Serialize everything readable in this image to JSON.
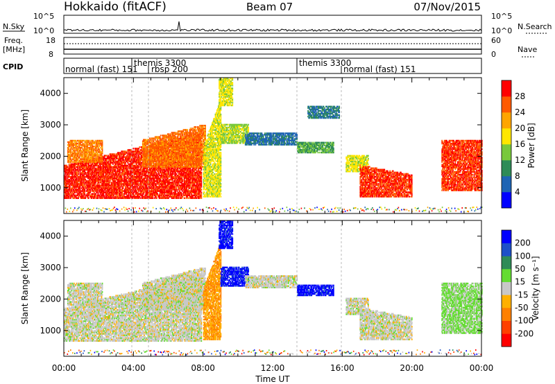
{
  "header": {
    "title": "Hokkaido (fitACF)",
    "beam": "Beam 07",
    "date": "07/Nov/2015"
  },
  "nsky_panel": {
    "label": "N.Sky",
    "left_ticks": [
      "10^5",
      "10^0"
    ],
    "right_ticks": [
      "10^5",
      "10^0"
    ],
    "right_label": "N.Search"
  },
  "freq_panel": {
    "label_line1": "Freq.",
    "label_line2": "[MHz]",
    "left_ticks": [
      "18",
      "8"
    ],
    "right_ticks": [
      "60",
      "0"
    ],
    "right_label": "Nave"
  },
  "cpid_panel": {
    "label": "CPID",
    "segments": [
      "normal (fast) 151",
      "themis 3300",
      "rbsp 200",
      "themis 3300",
      "normal (fast) 151"
    ]
  },
  "power_panel": {
    "ylabel": "Slant Range [km]",
    "yticks": [
      "1000",
      "2000",
      "3000",
      "4000"
    ],
    "colorbar_label": "Power [dB]",
    "colorbar_ticks": [
      "4",
      "8",
      "12",
      "16",
      "20",
      "24",
      "28"
    ],
    "colors": [
      "#0000ff",
      "#1e64b4",
      "#2e8b57",
      "#78c83c",
      "#ffe600",
      "#ffa500",
      "#ff5a00",
      "#ff0000"
    ]
  },
  "velocity_panel": {
    "ylabel": "Slant Range [km]",
    "yticks": [
      "1000",
      "2000",
      "3000",
      "4000"
    ],
    "colorbar_label": "Velocity [m s⁻¹]",
    "colorbar_ticks": [
      "200",
      "100",
      "50",
      "15",
      "-15",
      "-50",
      "-100",
      "-200"
    ],
    "colors": [
      "#0000ff",
      "#1e50c8",
      "#2e8b57",
      "#64dc32",
      "#c8c8c8",
      "#ffb000",
      "#ff8000",
      "#ff4000",
      "#ff0000"
    ]
  },
  "xaxis": {
    "label": "Time UT",
    "ticks": [
      "00:00",
      "04:00",
      "08:00",
      "12:00",
      "16:00",
      "20:00",
      "00:00"
    ]
  },
  "chart_data": [
    {
      "type": "heatmap",
      "name": "Power",
      "xlabel": "Time UT",
      "ylabel": "Slant Range [km]",
      "x_range": [
        0,
        24
      ],
      "y_range": [
        180,
        4500
      ],
      "colorbar": {
        "label": "Power [dB]",
        "range": [
          0,
          32
        ]
      },
      "regions": [
        {
          "t0": 0.0,
          "t1": 7.9,
          "r0": 650,
          "r1": 1700,
          "top_slope": 1050,
          "value": 29
        },
        {
          "t0": 0.2,
          "t1": 2.2,
          "r0": 1800,
          "r1": 2500,
          "top_slope": 0,
          "value": 24
        },
        {
          "t0": 4.5,
          "t1": 8.1,
          "r0": 1650,
          "r1": 2500,
          "top_slope": 500,
          "value": 25
        },
        {
          "t0": 8.0,
          "t1": 9.0,
          "r0": 700,
          "r1": 2300,
          "top_slope": 1500,
          "value": 17
        },
        {
          "t0": 9.0,
          "t1": 10.6,
          "r0": 2400,
          "r1": 3000,
          "top_slope": 0,
          "value": 15
        },
        {
          "t0": 8.9,
          "t1": 9.7,
          "r0": 3600,
          "r1": 4500,
          "top_slope": 0,
          "value": 17
        },
        {
          "t0": 10.4,
          "t1": 13.4,
          "r0": 2350,
          "r1": 2750,
          "top_slope": 0,
          "value": 7
        },
        {
          "t0": 13.4,
          "t1": 15.5,
          "r0": 2100,
          "r1": 2450,
          "top_slope": 0,
          "value": 12
        },
        {
          "t0": 14.0,
          "t1": 15.8,
          "r0": 3200,
          "r1": 3600,
          "top_slope": 0,
          "value": 8
        },
        {
          "t0": 16.2,
          "t1": 17.5,
          "r0": 1500,
          "r1": 2000,
          "top_slope": 0,
          "value": 17
        },
        {
          "t0": 17.0,
          "t1": 20.0,
          "r0": 700,
          "r1": 1700,
          "top_slope": -300,
          "value": 28
        },
        {
          "t0": 21.7,
          "t1": 24.0,
          "r0": 900,
          "r1": 2500,
          "top_slope": 0,
          "value": 28
        }
      ]
    },
    {
      "type": "heatmap",
      "name": "Velocity",
      "xlabel": "Time UT",
      "ylabel": "Slant Range [km]",
      "x_range": [
        0,
        24
      ],
      "y_range": [
        180,
        4500
      ],
      "colorbar": {
        "label": "Velocity [m s⁻¹]",
        "range": [
          -250,
          250
        ]
      },
      "regions": [
        {
          "t0": 0.0,
          "t1": 7.9,
          "r0": 650,
          "r1": 1700,
          "top_slope": 1050,
          "value": 0
        },
        {
          "t0": 0.2,
          "t1": 2.2,
          "r0": 1800,
          "r1": 2500,
          "top_slope": 0,
          "value": 0
        },
        {
          "t0": 4.5,
          "t1": 8.1,
          "r0": 1650,
          "r1": 2500,
          "top_slope": 500,
          "value": 0
        },
        {
          "t0": 8.0,
          "t1": 9.0,
          "r0": 700,
          "r1": 2300,
          "top_slope": 1500,
          "value": -80
        },
        {
          "t0": 9.0,
          "t1": 10.6,
          "r0": 2400,
          "r1": 3000,
          "top_slope": 0,
          "value": 220
        },
        {
          "t0": 8.9,
          "t1": 9.7,
          "r0": 3600,
          "r1": 4500,
          "top_slope": 0,
          "value": 220
        },
        {
          "t0": 10.4,
          "t1": 13.4,
          "r0": 2350,
          "r1": 2750,
          "top_slope": 0,
          "value": 0
        },
        {
          "t0": 13.4,
          "t1": 15.5,
          "r0": 2100,
          "r1": 2450,
          "top_slope": 0,
          "value": 220
        },
        {
          "t0": 16.2,
          "t1": 17.5,
          "r0": 1500,
          "r1": 2000,
          "top_slope": 0,
          "value": 0
        },
        {
          "t0": 17.0,
          "t1": 20.0,
          "r0": 700,
          "r1": 1700,
          "top_slope": -300,
          "value": 0
        },
        {
          "t0": 21.7,
          "t1": 24.0,
          "r0": 900,
          "r1": 2500,
          "top_slope": 0,
          "value": 40
        }
      ]
    }
  ]
}
